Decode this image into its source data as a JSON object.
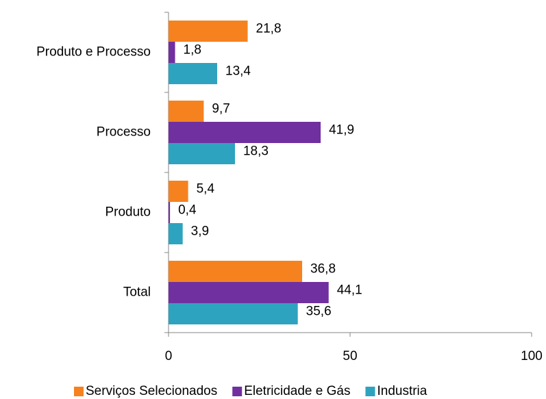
{
  "chart_data": {
    "type": "bar",
    "orientation": "horizontal",
    "categories": [
      "Produto e Processo",
      "Processo",
      "Produto",
      "Total"
    ],
    "series": [
      {
        "name": "Serviços Selecionados",
        "color": "#f5821f",
        "values": [
          21.8,
          9.7,
          5.4,
          36.8
        ],
        "value_labels": [
          "21,8",
          "9,7",
          "5,4",
          "36,8"
        ]
      },
      {
        "name": "Eletricidade e Gás",
        "color": "#7030a0",
        "values": [
          1.8,
          41.9,
          0.4,
          44.1
        ],
        "value_labels": [
          "1,8",
          "41,9",
          "0,4",
          "44,1"
        ]
      },
      {
        "name": "Industria",
        "color": "#2ea3c0",
        "values": [
          13.4,
          18.3,
          3.9,
          35.6
        ],
        "value_labels": [
          "13,4",
          "18,3",
          "3,9",
          "35,6"
        ]
      }
    ],
    "xlim": [
      0,
      100
    ],
    "xticks": [
      0,
      50,
      100
    ],
    "legend": "bottom",
    "grid": false
  }
}
